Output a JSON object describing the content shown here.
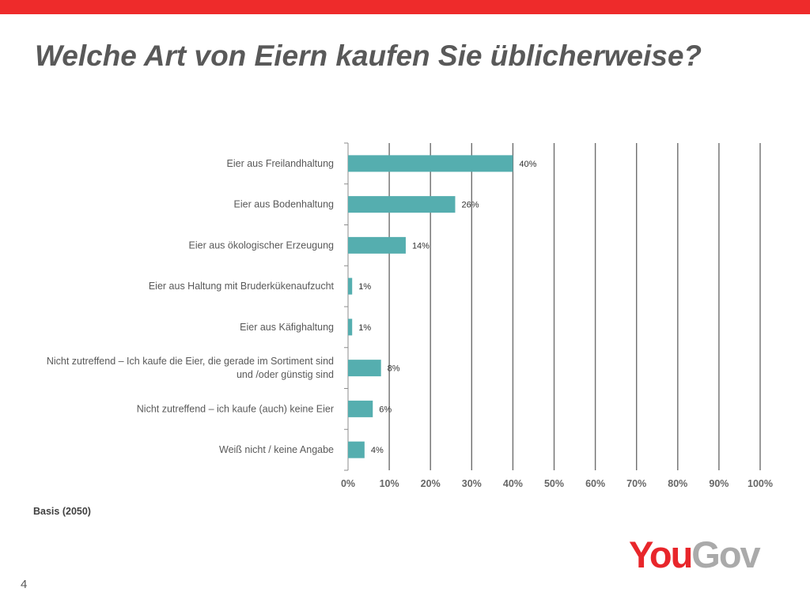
{
  "title": "Welche Art von Eiern kaufen Sie üblicherweise?",
  "colors": {
    "accent_bar": "#ee2b2b",
    "bar": "#55aeaf",
    "logo_you": "#e8262b",
    "logo_gov": "#aaaaaa"
  },
  "chart_data": {
    "type": "bar",
    "orientation": "horizontal",
    "categories": [
      [
        "Eier aus Freilandhaltung"
      ],
      [
        "Eier aus Bodenhaltung"
      ],
      [
        "Eier aus ökologischer Erzeugung"
      ],
      [
        "Eier aus Haltung mit Bruderkükenaufzucht"
      ],
      [
        "Eier aus Käfighaltung"
      ],
      [
        "Nicht zutreffend – Ich kaufe die Eier, die gerade im Sortiment sind",
        "und /oder günstig sind"
      ],
      [
        "Nicht zutreffend – ich kaufe (auch) keine Eier"
      ],
      [
        "Weiß nicht / keine Angabe"
      ]
    ],
    "values": [
      40,
      26,
      14,
      1,
      1,
      8,
      6,
      4
    ],
    "value_labels": [
      "40%",
      "26%",
      "14%",
      "1%",
      "1%",
      "8%",
      "6%",
      "4%"
    ],
    "xlim": [
      0,
      100
    ],
    "xticks": [
      0,
      10,
      20,
      30,
      40,
      50,
      60,
      70,
      80,
      90,
      100
    ],
    "xtick_labels": [
      "0%",
      "10%",
      "20%",
      "30%",
      "40%",
      "50%",
      "60%",
      "70%",
      "80%",
      "90%",
      "100%"
    ],
    "grid": "vertical"
  },
  "footer": {
    "basis": "Basis (2050)",
    "page_number": "4",
    "logo_you": "You",
    "logo_gov": "Gov"
  }
}
